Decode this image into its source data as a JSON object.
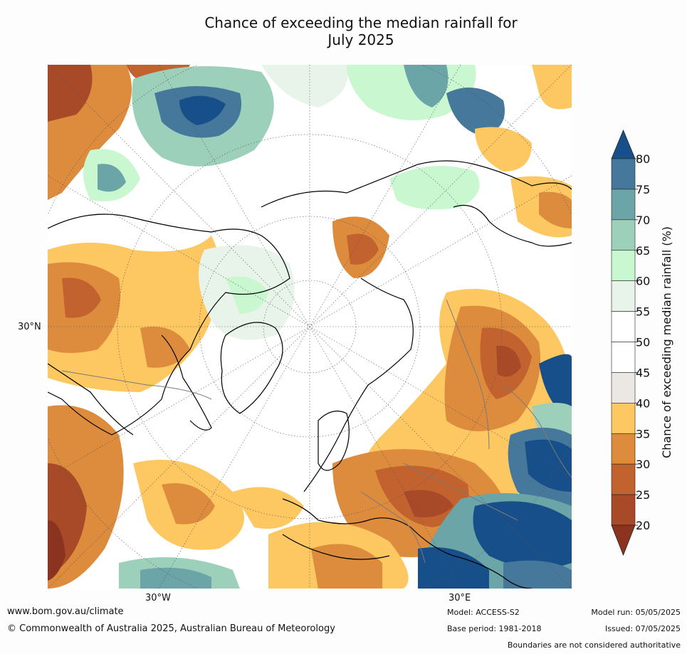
{
  "title_line1": "Chance of exceeding the median rainfall for",
  "title_line2": "July 2025",
  "map_labels": {
    "lat_left": "30°N",
    "lon_left": "30°W",
    "lon_right": "30°E"
  },
  "colorbar": {
    "label": "Chance of exceeding median rainfall (%)",
    "ticks": [
      "80",
      "75",
      "70",
      "65",
      "60",
      "55",
      "50",
      "45",
      "40",
      "35",
      "30",
      "25",
      "20"
    ],
    "bands": [
      {
        "range": "above 80",
        "color": "#174f8a"
      },
      {
        "range": "75-80",
        "color": "#45789a"
      },
      {
        "range": "70-75",
        "color": "#6ba5a8"
      },
      {
        "range": "65-70",
        "color": "#9dd0bb"
      },
      {
        "range": "60-65",
        "color": "#c9f7cf"
      },
      {
        "range": "55-60",
        "color": "#e8f4e9"
      },
      {
        "range": "50-55",
        "color": "#ffffff"
      },
      {
        "range": "45-50",
        "color": "#ffffff"
      },
      {
        "range": "40-45",
        "color": "#ebe8e3"
      },
      {
        "range": "35-40",
        "color": "#fdc762"
      },
      {
        "range": "30-35",
        "color": "#dd8b3c"
      },
      {
        "range": "25-30",
        "color": "#c2622f"
      },
      {
        "range": "20-25",
        "color": "#a84a28"
      },
      {
        "range": "below 20",
        "color": "#8c3320"
      }
    ]
  },
  "footer": {
    "website": "www.bom.gov.au/climate",
    "copyright": "© Commonwealth of Australia 2025, Australian Bureau of Meteorology",
    "model": "Model: ACCESS-S2",
    "base_period": "Base period: 1981-2018",
    "model_run": "Model run: 05/05/2025",
    "issued": "Issued: 07/05/2025",
    "disclaimer": "Boundaries are not considered authoritative"
  }
}
